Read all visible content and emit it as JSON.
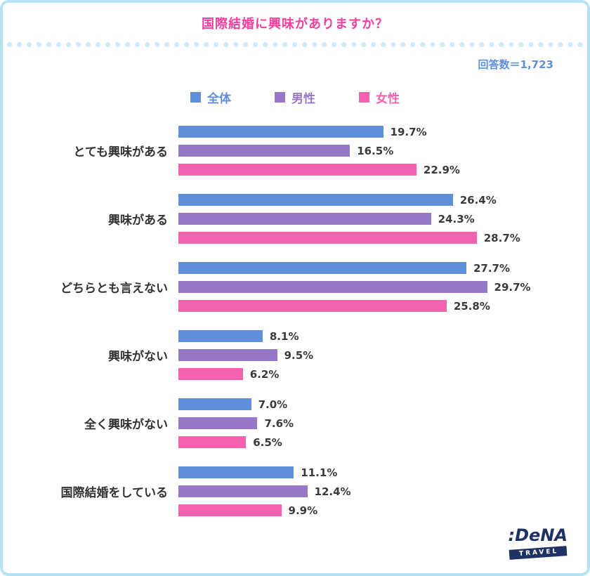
{
  "header": {
    "title": "国際結婚に興味がありますか？"
  },
  "meta": {
    "respondents_label": "回答数＝1,723"
  },
  "chart_data": {
    "type": "bar",
    "orientation": "horizontal",
    "title": "国際結婚に興味がありますか？",
    "value_suffix": "%",
    "xlim": [
      0,
      30
    ],
    "legend_position": "top-center",
    "categories": [
      "とても興味がある",
      "興味がある",
      "どちらとも言えない",
      "興味がない",
      "全く興味がない",
      "国際結婚をしている"
    ],
    "series": [
      {
        "key": "all",
        "name": "全体",
        "color": "#5e8fd8",
        "values": [
          19.7,
          26.4,
          27.7,
          8.1,
          7.0,
          11.1
        ]
      },
      {
        "key": "male",
        "name": "男性",
        "color": "#9678c6",
        "values": [
          16.5,
          24.3,
          29.7,
          9.5,
          7.6,
          12.4
        ]
      },
      {
        "key": "female",
        "name": "女性",
        "color": "#f363ad",
        "values": [
          22.9,
          28.7,
          25.8,
          6.2,
          6.5,
          9.9
        ]
      }
    ]
  },
  "colors": {
    "title_pink": "#fb3e9d",
    "respondents_blue": "#5e8fd8",
    "border_light_blue": "#b7e2f3",
    "logo_navy": "#1e3264"
  },
  "logo": {
    "brand": ":DeNA",
    "sub": "TRAVEL"
  }
}
